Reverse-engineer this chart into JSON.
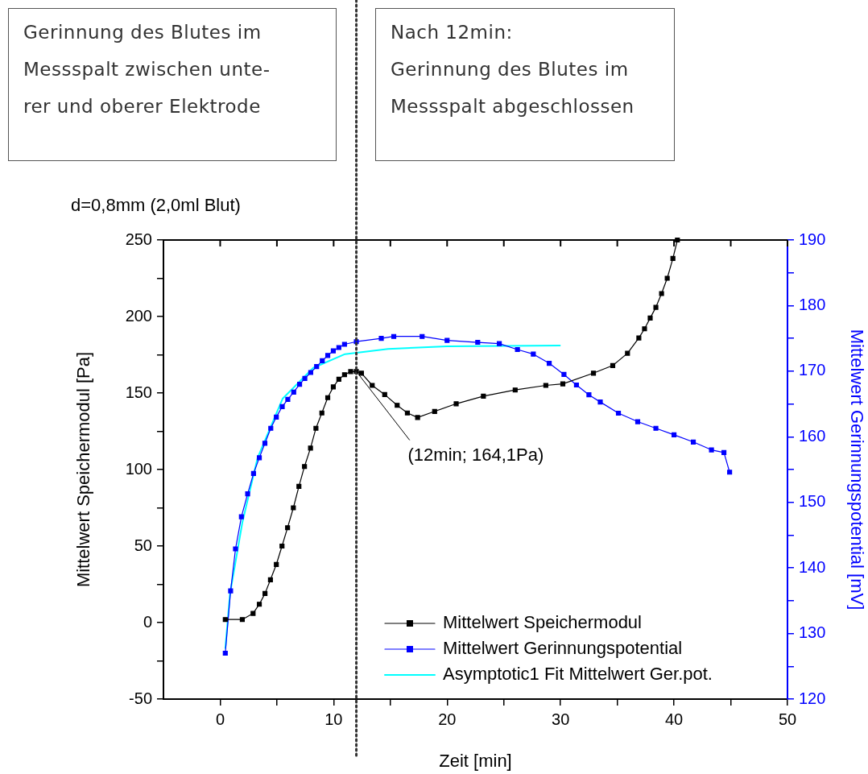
{
  "chart_data": {
    "type": "line",
    "title": "d=0,8mm (2,0ml Blut)",
    "xlabel": "Zeit [min]",
    "ylabel": "Mittelwert Speichermodul [Pa]",
    "y2label": "Mittelwert Gerinnungspotential [mV]",
    "xlim": [
      -5,
      50
    ],
    "xticks": [
      0,
      {
        "value": 5,
        "label": null
      },
      10,
      {
        "value": 15,
        "label": null
      },
      20,
      {
        "value": 25,
        "label": null
      },
      30,
      {
        "value": 35,
        "label": null
      },
      40,
      {
        "value": 45,
        "label": null
      },
      50
    ],
    "ylim": [
      -50,
      250
    ],
    "yticks": [
      -50,
      {
        "value": -25,
        "label": null
      },
      0,
      {
        "value": 25,
        "label": null
      },
      50,
      {
        "value": 75,
        "label": null
      },
      100,
      {
        "value": 125,
        "label": null
      },
      150,
      {
        "value": 175,
        "label": null
      },
      200,
      {
        "value": 225,
        "label": null
      },
      250
    ],
    "y2lim": [
      120,
      190
    ],
    "y2ticks": [
      120,
      {
        "value": 125,
        "label": null
      },
      130,
      {
        "value": 135,
        "label": null
      },
      140,
      {
        "value": 145,
        "label": null
      },
      150,
      {
        "value": 155,
        "label": null
      },
      160,
      {
        "value": 165,
        "label": null
      },
      170,
      {
        "value": 175,
        "label": null
      },
      180,
      {
        "value": 185,
        "label": null
      },
      190
    ],
    "grid": false,
    "legend": "bottom right",
    "marker": "square",
    "line_style": "solid",
    "series": [
      {
        "name": "Mittelwert Speichermodul",
        "color": "#000000",
        "x": [
          0.45,
          1.95,
          2.9,
          3.45,
          3.95,
          4.43,
          4.95,
          5.45,
          5.94,
          6.45,
          6.94,
          7.43,
          7.96,
          8.44,
          8.96,
          9.48,
          9.97,
          10.46,
          10.96,
          11.5,
          12,
          12.45,
          13.4,
          14.5,
          15.6,
          16.5,
          17.4,
          18.9,
          20.8,
          23.2,
          26,
          28.7,
          30.2,
          32.9,
          34.6,
          35.9,
          36.9,
          37.4,
          37.9,
          38.4,
          38.9,
          39.4,
          39.9,
          40.3
        ],
        "values": [
          2,
          2,
          6,
          12,
          19,
          28,
          38,
          50,
          62,
          75,
          89,
          102,
          114,
          127,
          137,
          147,
          154,
          159,
          162,
          164,
          164.1,
          163,
          155,
          149,
          142,
          137,
          134,
          138,
          143,
          148,
          152,
          155,
          156,
          163,
          168,
          176,
          186,
          192,
          199,
          206,
          215,
          225,
          238,
          250
        ]
      },
      {
        "name": "Mittelwert Gerinnungspotential",
        "color": "#0000ff",
        "axis": "y2",
        "x": [
          0.45,
          0.92,
          1.35,
          1.87,
          2.42,
          2.94,
          3.45,
          3.94,
          4.46,
          4.95,
          5.47,
          5.96,
          6.48,
          7,
          7.46,
          7.98,
          8.5,
          9,
          9.48,
          9.97,
          10.46,
          10.96,
          12,
          14.2,
          15.3,
          17.8,
          20,
          22.7,
          24.6,
          26.2,
          27.6,
          29,
          30.3,
          31.4,
          32.5,
          33.5,
          35.1,
          36.8,
          38.4,
          40,
          41.7,
          43.3,
          44.4,
          44.9
        ],
        "values": [
          127,
          136.5,
          142.9,
          147.8,
          151.3,
          154.4,
          156.8,
          159,
          161.3,
          163,
          164.6,
          165.7,
          166.8,
          168,
          168.9,
          169.8,
          170.7,
          171.6,
          172.4,
          173.1,
          173.6,
          174.1,
          174.5,
          175,
          175.3,
          175.3,
          174.7,
          174.4,
          174.2,
          173.3,
          172.6,
          171.2,
          169.5,
          167.9,
          166.4,
          165.3,
          163.6,
          162.3,
          161.3,
          160.3,
          159.2,
          158,
          157.6,
          154.6
        ]
      },
      {
        "name": "Asymptotic1 Fit Mittelwert Ger.pot.",
        "color": "#00ffff",
        "axis": "y2",
        "marker": "none",
        "x": [
          0.45,
          0.86,
          1.95,
          3.3,
          5.5,
          8.2,
          11,
          14.8,
          20,
          30
        ],
        "values": [
          127.7,
          136,
          146.9,
          156.8,
          165.8,
          170.5,
          172.6,
          173.4,
          173.8,
          173.9
        ]
      }
    ],
    "ref_lines": [
      {
        "axis": "x",
        "value": 12,
        "color": "#333333",
        "line_style": "dotted"
      }
    ],
    "annotations": [
      "Gerinnung des Blutes im\nMessspalt zwischen unte-\nrer und oberer Elektrode",
      "Nach 12min:\nGerinnung des Blutes im\nMessspalt abgeschlossen",
      {
        "text": "(12min; 164,1Pa)",
        "x": 12,
        "y": 164.1
      }
    ]
  }
}
